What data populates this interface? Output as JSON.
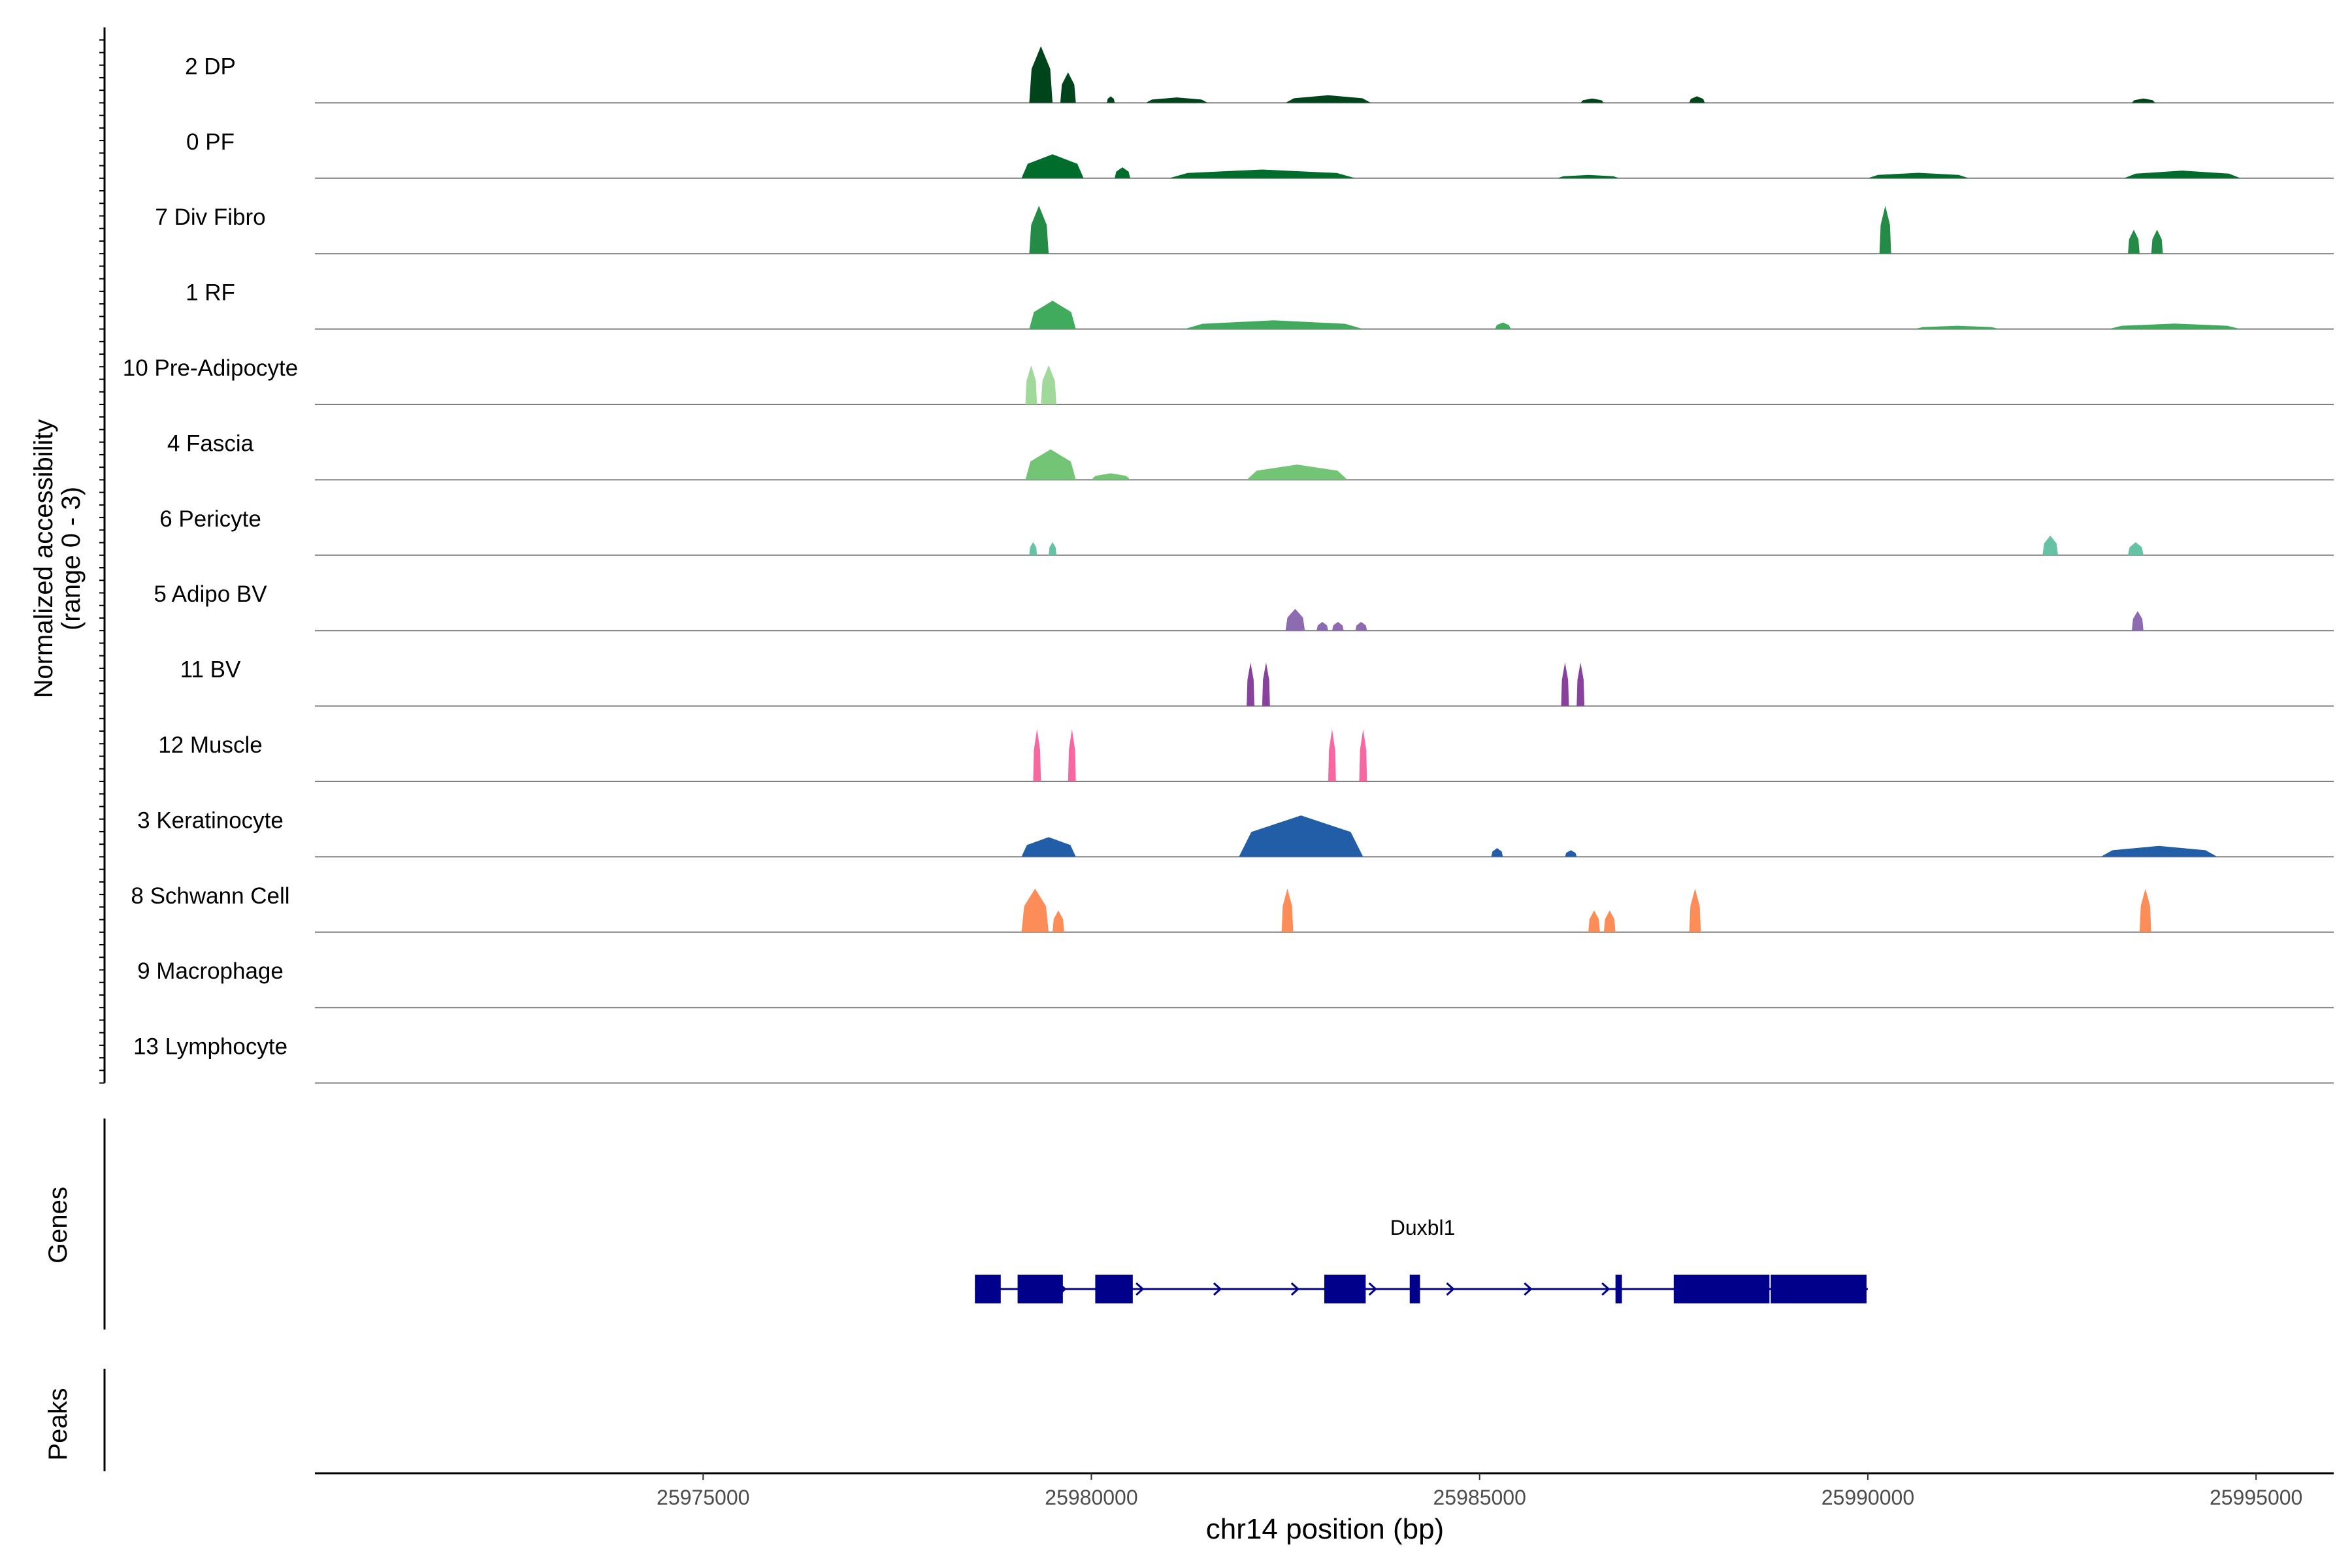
{
  "chart_data": {
    "type": "area",
    "chromosome": "chr14",
    "xlabel": "chr14 position (bp)",
    "ylabel_line1": "Normalized accessibility",
    "ylabel_line2": "(range 0 - 3)",
    "xlim": [
      25970000,
      25996000
    ],
    "ylim": [
      0,
      3
    ],
    "x_ticks": [
      25975000,
      25980000,
      25985000,
      25990000,
      25995000
    ],
    "x_tick_labels": [
      "25975000",
      "25980000",
      "25985000",
      "25990000",
      "25995000"
    ],
    "tracks": [
      {
        "name": "2 DP",
        "color": "#00441b",
        "peaks": [
          [
            25979200,
            25979500,
            2.6
          ],
          [
            25979600,
            25979800,
            1.4
          ],
          [
            25980200,
            25980300,
            0.3
          ],
          [
            25980700,
            25981500,
            0.25
          ],
          [
            25982500,
            25983600,
            0.35
          ],
          [
            25986300,
            25986600,
            0.2
          ],
          [
            25987700,
            25987900,
            0.3
          ],
          [
            25993400,
            25993700,
            0.2
          ]
        ]
      },
      {
        "name": "0 PF",
        "color": "#006d2c",
        "peaks": [
          [
            25979100,
            25979900,
            1.1
          ],
          [
            25980300,
            25980500,
            0.5
          ],
          [
            25981000,
            25983400,
            0.4
          ],
          [
            25986000,
            25986800,
            0.15
          ],
          [
            25990000,
            25991300,
            0.25
          ],
          [
            25993300,
            25994800,
            0.35
          ]
        ]
      },
      {
        "name": "7 Div Fibro",
        "color": "#238b45",
        "peaks": [
          [
            25979200,
            25979450,
            2.2
          ],
          [
            25990150,
            25990300,
            2.2
          ],
          [
            25993350,
            25993500,
            1.1
          ],
          [
            25993650,
            25993800,
            1.1
          ]
        ]
      },
      {
        "name": "1 RF",
        "color": "#41ab5d",
        "peaks": [
          [
            25979200,
            25979800,
            1.3
          ],
          [
            25981200,
            25983500,
            0.4
          ],
          [
            25985200,
            25985400,
            0.3
          ],
          [
            25990600,
            25991700,
            0.15
          ],
          [
            25993100,
            25994800,
            0.25
          ]
        ]
      },
      {
        "name": "10 Pre-Adipocyte",
        "color": "#a1d99b",
        "peaks": [
          [
            25979150,
            25979300,
            1.8
          ],
          [
            25979350,
            25979550,
            1.8
          ]
        ]
      },
      {
        "name": "4 Fascia",
        "color": "#74c476",
        "peaks": [
          [
            25979150,
            25979800,
            1.4
          ],
          [
            25980000,
            25980500,
            0.3
          ],
          [
            25982000,
            25983300,
            0.7
          ]
        ]
      },
      {
        "name": "6 Pericyte",
        "color": "#66c2a4",
        "peaks": [
          [
            25979200,
            25979300,
            0.6
          ],
          [
            25979450,
            25979550,
            0.6
          ],
          [
            25992250,
            25992450,
            0.9
          ],
          [
            25993350,
            25993550,
            0.6
          ]
        ]
      },
      {
        "name": "5 Adipo BV",
        "color": "#8c6bb1",
        "peaks": [
          [
            25982500,
            25982750,
            1.0
          ],
          [
            25982900,
            25983050,
            0.4
          ],
          [
            25983100,
            25983250,
            0.4
          ],
          [
            25983400,
            25983550,
            0.4
          ],
          [
            25993400,
            25993550,
            0.9
          ]
        ]
      },
      {
        "name": "11 BV",
        "color": "#88419d",
        "peaks": [
          [
            25982000,
            25982100,
            2.0
          ],
          [
            25982200,
            25982300,
            2.0
          ],
          [
            25986050,
            25986150,
            2.0
          ],
          [
            25986250,
            25986350,
            2.0
          ]
        ]
      },
      {
        "name": "12 Muscle",
        "color": "#f768a1",
        "peaks": [
          [
            25979250,
            25979350,
            2.4
          ],
          [
            25979700,
            25979800,
            2.4
          ],
          [
            25983050,
            25983150,
            2.4
          ],
          [
            25983450,
            25983550,
            2.4
          ]
        ]
      },
      {
        "name": "3 Keratinocyte",
        "color": "#225ea8",
        "peaks": [
          [
            25979100,
            25979800,
            0.9
          ],
          [
            25981900,
            25983500,
            1.9
          ],
          [
            25985150,
            25985300,
            0.4
          ],
          [
            25986100,
            25986250,
            0.3
          ],
          [
            25993000,
            25994500,
            0.5
          ]
        ]
      },
      {
        "name": "8 Schwann Cell",
        "color": "#fc8d59",
        "peaks": [
          [
            25979100,
            25979450,
            2.0
          ],
          [
            25979500,
            25979650,
            1.0
          ],
          [
            25982450,
            25982600,
            2.0
          ],
          [
            25986400,
            25986550,
            1.0
          ],
          [
            25986600,
            25986750,
            1.0
          ],
          [
            25987700,
            25987850,
            2.0
          ],
          [
            25993500,
            25993650,
            2.0
          ]
        ]
      },
      {
        "name": "9 Macrophage",
        "color": "#7f7f7f",
        "peaks": []
      },
      {
        "name": "13 Lymphocyte",
        "color": "#7f7f7f",
        "peaks": []
      }
    ],
    "genes_label": "Genes",
    "peaks_label": "Peaks",
    "gene": {
      "name": "Duxbl1",
      "color": "#00008b",
      "start": 25978500,
      "end": 25990000,
      "strand": "+",
      "exons": [
        [
          25978500,
          25978850
        ],
        [
          25979050,
          25979650
        ],
        [
          25980050,
          25980550
        ],
        [
          25983000,
          25983550
        ],
        [
          25984100,
          25984250
        ],
        [
          25986750,
          25986850
        ],
        [
          25987500,
          25988750
        ],
        [
          25988750,
          25990000
        ]
      ]
    }
  }
}
